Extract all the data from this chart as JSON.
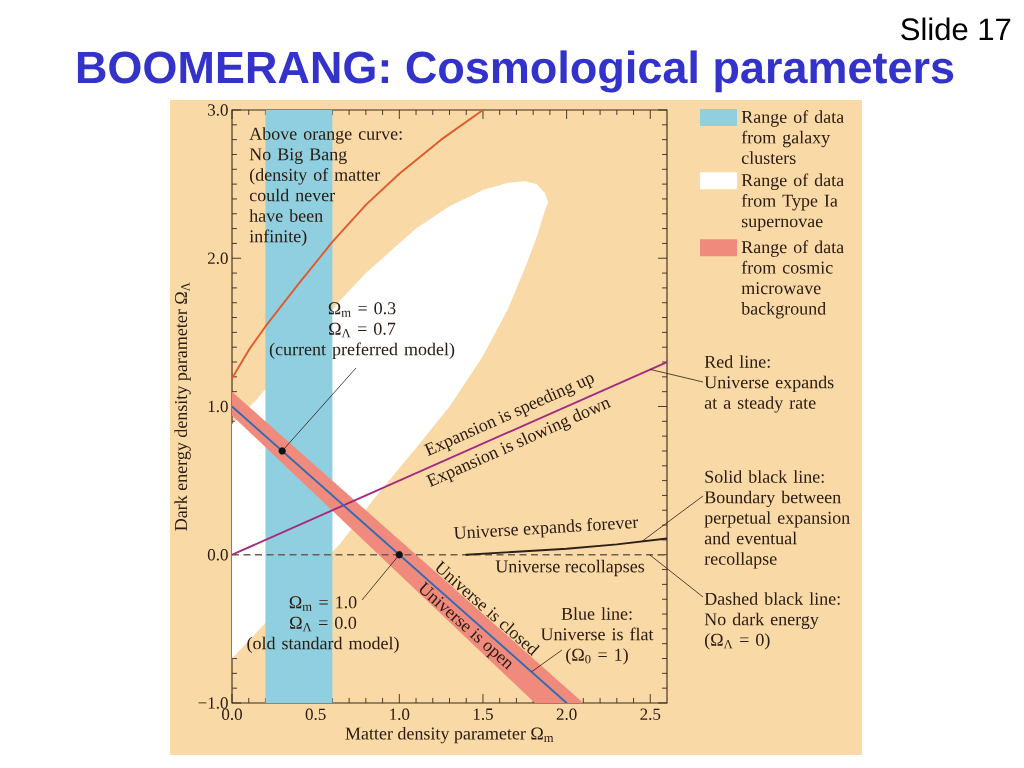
{
  "chart_data": {
    "type": "line",
    "title": "BOOMERANG: Cosmological parameters",
    "xlabel": "Matter density parameter Ω$_{m}$",
    "ylabel": "Dark energy density parameter Ω$_{Λ}$",
    "xlim": [
      0,
      2.6
    ],
    "ylim": [
      -1,
      3
    ],
    "xticks": [
      {
        "value": 0,
        "label": "0.0"
      },
      {
        "value": 0.1,
        "label": null
      },
      {
        "value": 0.2,
        "label": null
      },
      {
        "value": 0.3,
        "label": null
      },
      {
        "value": 0.4,
        "label": null
      },
      {
        "value": 0.5,
        "label": "0.5"
      },
      {
        "value": 0.6,
        "label": null
      },
      {
        "value": 0.7,
        "label": null
      },
      {
        "value": 0.8,
        "label": null
      },
      {
        "value": 0.9,
        "label": null
      },
      {
        "value": 1.0,
        "label": "1.0"
      },
      {
        "value": 1.1,
        "label": null
      },
      {
        "value": 1.2,
        "label": null
      },
      {
        "value": 1.3,
        "label": null
      },
      {
        "value": 1.4,
        "label": null
      },
      {
        "value": 1.5,
        "label": "1.5"
      },
      {
        "value": 1.6,
        "label": null
      },
      {
        "value": 1.7,
        "label": null
      },
      {
        "value": 1.8,
        "label": null
      },
      {
        "value": 1.9,
        "label": null
      },
      {
        "value": 2.0,
        "label": "2.0"
      },
      {
        "value": 2.1,
        "label": null
      },
      {
        "value": 2.2,
        "label": null
      },
      {
        "value": 2.3,
        "label": null
      },
      {
        "value": 2.4,
        "label": null
      },
      {
        "value": 2.5,
        "label": "2.5"
      }
    ],
    "yticks": [
      {
        "value": -1,
        "label": "−1.0"
      },
      {
        "value": -0.9,
        "label": null
      },
      {
        "value": -0.8,
        "label": null
      },
      {
        "value": -0.7,
        "label": null
      },
      {
        "value": -0.6,
        "label": null
      },
      {
        "value": -0.5,
        "label": null
      },
      {
        "value": -0.4,
        "label": null
      },
      {
        "value": -0.3,
        "label": null
      },
      {
        "value": -0.2,
        "label": null
      },
      {
        "value": -0.1,
        "label": null
      },
      {
        "value": 0,
        "label": "0.0"
      },
      {
        "value": 0.1,
        "label": null
      },
      {
        "value": 0.2,
        "label": null
      },
      {
        "value": 0.3,
        "label": null
      },
      {
        "value": 0.4,
        "label": null
      },
      {
        "value": 0.5,
        "label": null
      },
      {
        "value": 0.6,
        "label": null
      },
      {
        "value": 0.7,
        "label": null
      },
      {
        "value": 0.8,
        "label": null
      },
      {
        "value": 0.9,
        "label": null
      },
      {
        "value": 1,
        "label": "1.0"
      },
      {
        "value": 1.1,
        "label": null
      },
      {
        "value": 1.2,
        "label": null
      },
      {
        "value": 1.3,
        "label": null
      },
      {
        "value": 1.4,
        "label": null
      },
      {
        "value": 1.5,
        "label": null
      },
      {
        "value": 1.6,
        "label": null
      },
      {
        "value": 1.7,
        "label": null
      },
      {
        "value": 1.8,
        "label": null
      },
      {
        "value": 1.9,
        "label": null
      },
      {
        "value": 2,
        "label": "2.0"
      },
      {
        "value": 2.1,
        "label": null
      },
      {
        "value": 2.2,
        "label": null
      },
      {
        "value": 2.3,
        "label": null
      },
      {
        "value": 2.4,
        "label": null
      },
      {
        "value": 2.5,
        "label": null
      },
      {
        "value": 2.6,
        "label": null
      },
      {
        "value": 2.7,
        "label": null
      },
      {
        "value": 2.8,
        "label": null
      },
      {
        "value": 2.9,
        "label": null
      },
      {
        "value": 3,
        "label": "3.0"
      }
    ],
    "legend": "right",
    "series": [
      {
        "name": "Range of data from galaxy clusters",
        "type": "area",
        "color": "#8fcfe0",
        "x": [
          0.2,
          0.6,
          0.6,
          0.2
        ],
        "values": [
          -1,
          -1,
          3,
          3
        ]
      },
      {
        "name": "Range of data from Type Ia supernovae",
        "type": "area",
        "color": "#ffffff",
        "x": [
          0,
          0.15,
          0.65,
          0.8,
          0.95,
          1.1,
          1.3,
          1.5,
          1.65,
          1.75,
          1.82,
          1.87,
          1.89,
          1.87,
          1.82,
          1.75,
          1.65,
          1.5,
          1.3,
          1.1,
          0.85,
          0.65,
          0.15,
          0
        ],
        "values": [
          0.88,
          1.05,
          1.72,
          1.9,
          2.05,
          2.2,
          2.35,
          2.46,
          2.51,
          2.52,
          2.5,
          2.44,
          2.38,
          2.32,
          2.14,
          1.93,
          1.66,
          1.34,
          1.0,
          0.72,
          0.38,
          0.08,
          -0.52,
          -0.7
        ]
      },
      {
        "name": "Range of data from cosmic microwave background",
        "type": "area",
        "color": "#f08a7c",
        "x": [
          0,
          2.1,
          1.81,
          0
        ],
        "values": [
          1.1,
          -1.0,
          -1.0,
          0.94
        ]
      },
      {
        "type": "line",
        "color": "#e05a2b",
        "x": [
          0,
          0.1,
          0.2,
          0.4,
          0.6,
          0.8,
          1.0,
          1.25,
          1.5
        ],
        "values": [
          1.19,
          1.38,
          1.54,
          1.83,
          2.11,
          2.36,
          2.57,
          2.8,
          3.0
        ]
      },
      {
        "type": "line",
        "color": "#a52a7f",
        "x": [
          0,
          2.6
        ],
        "values": [
          0.0,
          1.3
        ]
      },
      {
        "type": "line",
        "color": "#2b2118",
        "x": [
          1.4,
          1.7,
          2.0,
          2.3,
          2.6
        ],
        "values": [
          0.0,
          0.02,
          0.04,
          0.07,
          0.11
        ]
      },
      {
        "type": "line",
        "color": "#2e6db4",
        "x": [
          0,
          2.0
        ],
        "values": [
          1.0,
          -1.0
        ]
      },
      {
        "type": "scatter",
        "color": "#111111",
        "marker": "circle",
        "x": [
          0.3,
          1.0
        ],
        "values": [
          0.7,
          0.0
        ]
      }
    ],
    "ref_lines": [
      {
        "axis": "y",
        "value": 0,
        "label": "Dashed black line:\nNo dark energy\n(Ω$_{Λ}$ = 0)",
        "line_style": "dashed",
        "color": "#6b6152"
      }
    ],
    "annotations": [
      "Slide 17",
      "Above orange curve:\nNo Big Bang\n(density of matter\ncould never\nhave been\ninfinite)",
      {
        "text": "Ω$_{m}$ = 0.3\nΩ$_{Λ}$ = 0.7\n(current preferred model)",
        "x": 0.3,
        "y": 0.7
      },
      {
        "text": "Ω$_{m}$ = 1.0\nΩ$_{Λ}$ = 0.0\n(old standard model)",
        "x": 1.0,
        "y": 0.0
      },
      "Expansion is speeding up",
      "Expansion is slowing down",
      "Universe expands forever",
      "Universe recollapses",
      "Universe is closed",
      "Universe is open",
      {
        "text": "Blue line:\nUniverse is flat\n(Ω$_{0}$ = 1)",
        "x": 1.79,
        "y": -0.79
      },
      {
        "text": "Red line:\nUniverse expands\nat a steady rate",
        "x": 2.5,
        "y": 1.25
      },
      {
        "text": "Solid black line:\nBoundary between\nperpetual expansion\nand eventual\nrecollapse",
        "x": 2.45,
        "y": 0.09
      }
    ]
  }
}
